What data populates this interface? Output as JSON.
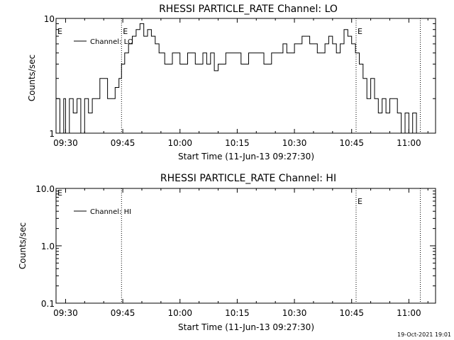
{
  "footer": {
    "timestamp": "19-Oct-2021 19:01"
  },
  "chart_data": [
    {
      "type": "line",
      "title": "RHESSI PARTICLE_RATE Channel: LO",
      "xlabel": "Start Time (11-Jun-13 09:27:30)",
      "ylabel": "Counts/sec",
      "yscale": "log",
      "ylim": [
        1,
        10
      ],
      "yticks": [
        1,
        10
      ],
      "ytick_labels": [
        "1",
        "10"
      ],
      "xlim": [
        "09:27:30",
        "11:07:00"
      ],
      "xticks": [
        "09:30",
        "09:45",
        "10:00",
        "10:15",
        "10:30",
        "10:45",
        "11:00"
      ],
      "markers": [
        {
          "time": "09:44:40",
          "label": "E"
        },
        {
          "time": "10:46:10",
          "label": "E"
        },
        {
          "time": "11:03:00",
          "label": ""
        }
      ],
      "edge_marker": "E",
      "legend": {
        "position": "top-left"
      },
      "series": [
        {
          "name": "Channel: LO",
          "x": [
            "09:27:30",
            "09:28:30",
            "09:29:30",
            "09:30:00",
            "09:31:00",
            "09:32:00",
            "09:33:00",
            "09:34:00",
            "09:35:00",
            "09:36:00",
            "09:37:00",
            "09:38:00",
            "09:39:00",
            "09:40:00",
            "09:41:00",
            "09:42:00",
            "09:43:00",
            "09:44:00",
            "09:44:40",
            "09:45:30",
            "09:46:30",
            "09:47:30",
            "09:48:30",
            "09:49:30",
            "09:50:30",
            "09:51:30",
            "09:52:30",
            "09:53:30",
            "09:54:30",
            "09:56:00",
            "09:58:00",
            "10:00:00",
            "10:02:00",
            "10:04:00",
            "10:06:00",
            "10:07:00",
            "10:08:00",
            "10:09:00",
            "10:10:00",
            "10:12:00",
            "10:14:00",
            "10:16:00",
            "10:18:00",
            "10:20:00",
            "10:22:00",
            "10:24:00",
            "10:26:00",
            "10:27:00",
            "10:28:00",
            "10:29:00",
            "10:30:00",
            "10:32:00",
            "10:34:00",
            "10:36:00",
            "10:38:00",
            "10:39:00",
            "10:40:00",
            "10:41:00",
            "10:42:00",
            "10:43:00",
            "10:44:00",
            "10:45:00",
            "10:46:00",
            "10:47:00",
            "10:48:00",
            "10:49:00",
            "10:50:00",
            "10:51:00",
            "10:52:00",
            "10:53:00",
            "10:54:00",
            "10:55:00",
            "10:56:00",
            "10:57:00",
            "10:58:00",
            "10:59:00",
            "11:00:00",
            "11:01:00",
            "11:02:00"
          ],
          "y": [
            2,
            1,
            2,
            1,
            2,
            1.5,
            2,
            1,
            2,
            1.5,
            2,
            2,
            3,
            3,
            2,
            2,
            2.5,
            3,
            4,
            5,
            6,
            7,
            8,
            9,
            7,
            8,
            7,
            6,
            5,
            4,
            5,
            4,
            5,
            4,
            5,
            4,
            5,
            3.5,
            4,
            5,
            5,
            4,
            5,
            5,
            4,
            5,
            5,
            6,
            5,
            5,
            6,
            7,
            6,
            5,
            6,
            7,
            6,
            5,
            6,
            8,
            7,
            6,
            5,
            4,
            3,
            2,
            3,
            2,
            1.5,
            2,
            1.5,
            2,
            2,
            1.5,
            1,
            1.5,
            1,
            1.5,
            1
          ]
        }
      ]
    },
    {
      "type": "line",
      "title": "RHESSI PARTICLE_RATE Channel: HI",
      "xlabel": "Start Time (11-Jun-13 09:27:30)",
      "ylabel": "Counts/sec",
      "yscale": "log",
      "ylim": [
        0.1,
        10
      ],
      "yticks": [
        0.1,
        1,
        10
      ],
      "ytick_labels": [
        "0.1",
        "1.0",
        "10.0"
      ],
      "xlim": [
        "09:27:30",
        "11:07:00"
      ],
      "xticks": [
        "09:30",
        "09:45",
        "10:00",
        "10:15",
        "10:30",
        "10:45",
        "11:00"
      ],
      "markers": [
        {
          "time": "09:44:40",
          "label": ""
        },
        {
          "time": "10:46:10",
          "label": "E"
        },
        {
          "time": "11:03:00",
          "label": ""
        }
      ],
      "edge_marker": "E",
      "legend": {
        "position": "top-left"
      },
      "series": [
        {
          "name": "Channel: HI",
          "x": [],
          "y": []
        }
      ]
    }
  ]
}
